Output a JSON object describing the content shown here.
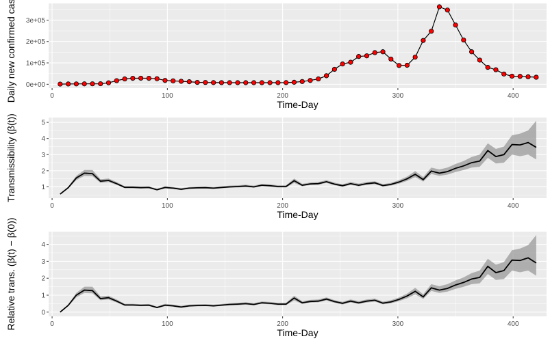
{
  "chart_data": [
    {
      "type": "line",
      "xlabel": "Time-Day",
      "ylabel": "Daily new confirmed cases",
      "xlim": [
        -3,
        429
      ],
      "ylim": [
        -18000,
        378000
      ],
      "x_ticks": [
        0,
        100,
        200,
        300,
        400
      ],
      "y_ticks": [
        0,
        100000,
        200000,
        300000
      ],
      "y_tick_labels": [
        "0e+00",
        "1e+05",
        "2e+05",
        "3e+05"
      ],
      "grid": true,
      "colors": {
        "panel": "#ebebeb",
        "grid": "#ffffff",
        "line": "#000000",
        "point": "#ff0000"
      },
      "series": [
        {
          "x": [
            7,
            14,
            21,
            28,
            35,
            42,
            49,
            56,
            63,
            70,
            77,
            84,
            91,
            98,
            105,
            112,
            119,
            126,
            133,
            140,
            147,
            154,
            161,
            168,
            175,
            182,
            189,
            196,
            203,
            210,
            217,
            224,
            231,
            238,
            245,
            252,
            259,
            266,
            273,
            280,
            287,
            294,
            301,
            308,
            315,
            322,
            329,
            336,
            343,
            350,
            357,
            364,
            371,
            378,
            385,
            392,
            399,
            406,
            413,
            420
          ],
          "y": [
            1000,
            1500,
            1800,
            2000,
            2200,
            2500,
            7000,
            17000,
            25000,
            28000,
            28500,
            28000,
            26000,
            18000,
            16000,
            14000,
            12000,
            9000,
            8500,
            8000,
            7800,
            7500,
            7500,
            7500,
            7500,
            7500,
            7500,
            7500,
            8000,
            9500,
            13000,
            18000,
            25000,
            40000,
            70000,
            95000,
            103000,
            130000,
            133000,
            148000,
            152000,
            118000,
            88000,
            89000,
            127000,
            205000,
            248000,
            362000,
            347000,
            277000,
            207000,
            152000,
            113000,
            79000,
            68000,
            48000,
            38000,
            37000,
            35000,
            33000
          ]
        }
      ]
    },
    {
      "type": "line",
      "xlabel": "Time-Day",
      "ylabel": "Transmissibility (β(t))",
      "xlim": [
        -3,
        429
      ],
      "ylim": [
        0.3,
        5.3
      ],
      "x_ticks": [
        0,
        100,
        200,
        300,
        400
      ],
      "y_ticks": [
        1,
        2,
        3,
        4,
        5
      ],
      "grid": true,
      "band": true,
      "colors": {
        "panel": "#ebebeb",
        "grid": "#ffffff",
        "line": "#000000",
        "band": "#999999"
      },
      "series": [
        {
          "x": [
            7,
            14,
            21,
            28,
            35,
            42,
            49,
            56,
            63,
            70,
            77,
            84,
            91,
            98,
            105,
            112,
            119,
            126,
            133,
            140,
            147,
            154,
            161,
            168,
            175,
            182,
            189,
            196,
            203,
            210,
            217,
            224,
            231,
            238,
            245,
            252,
            259,
            266,
            273,
            280,
            287,
            294,
            301,
            308,
            315,
            322,
            329,
            336,
            343,
            350,
            357,
            364,
            371,
            378,
            385,
            392,
            399,
            406,
            413,
            420
          ],
          "y": [
            0.55,
            0.95,
            1.55,
            1.85,
            1.82,
            1.35,
            1.4,
            1.2,
            0.97,
            0.97,
            0.95,
            0.96,
            0.82,
            0.96,
            0.92,
            0.85,
            0.92,
            0.94,
            0.95,
            0.92,
            0.96,
            1.0,
            1.02,
            1.05,
            1.0,
            1.1,
            1.07,
            1.02,
            1.02,
            1.38,
            1.1,
            1.18,
            1.2,
            1.32,
            1.17,
            1.07,
            1.2,
            1.1,
            1.2,
            1.25,
            1.08,
            1.15,
            1.3,
            1.5,
            1.78,
            1.45,
            1.98,
            1.85,
            1.95,
            2.15,
            2.3,
            2.5,
            2.6,
            3.25,
            2.88,
            3.0,
            3.62,
            3.6,
            3.75,
            3.45
          ],
          "lower": [
            0.55,
            0.9,
            1.42,
            1.68,
            1.66,
            1.25,
            1.3,
            1.12,
            0.92,
            0.92,
            0.9,
            0.91,
            0.78,
            0.9,
            0.87,
            0.8,
            0.87,
            0.89,
            0.9,
            0.87,
            0.91,
            0.95,
            0.96,
            0.99,
            0.95,
            1.04,
            1.01,
            0.96,
            0.96,
            1.24,
            1.03,
            1.11,
            1.13,
            1.24,
            1.1,
            1.0,
            1.12,
            1.03,
            1.12,
            1.17,
            1.01,
            1.07,
            1.2,
            1.37,
            1.6,
            1.33,
            1.8,
            1.68,
            1.76,
            1.92,
            2.04,
            2.2,
            2.25,
            2.8,
            2.45,
            2.5,
            3.0,
            2.9,
            3.0,
            2.7
          ],
          "upper": [
            0.55,
            1.0,
            1.68,
            2.05,
            2.05,
            1.48,
            1.52,
            1.3,
            1.04,
            1.04,
            1.02,
            1.03,
            0.88,
            1.04,
            0.99,
            0.92,
            0.99,
            1.01,
            1.02,
            0.99,
            1.03,
            1.08,
            1.1,
            1.13,
            1.08,
            1.18,
            1.15,
            1.1,
            1.1,
            1.52,
            1.19,
            1.27,
            1.3,
            1.42,
            1.26,
            1.16,
            1.3,
            1.2,
            1.3,
            1.35,
            1.17,
            1.25,
            1.42,
            1.64,
            1.98,
            1.6,
            2.2,
            2.08,
            2.2,
            2.42,
            2.6,
            2.85,
            3.0,
            3.7,
            3.35,
            3.5,
            4.2,
            4.3,
            4.5,
            5.1
          ]
        }
      ]
    },
    {
      "type": "line",
      "xlabel": "Time-Day",
      "ylabel": "Relative trans. (β(t) − β(0))",
      "xlim": [
        -3,
        429
      ],
      "ylim": [
        -0.25,
        4.75
      ],
      "x_ticks": [
        0,
        100,
        200,
        300,
        400
      ],
      "y_ticks": [
        0,
        1,
        2,
        3,
        4
      ],
      "grid": true,
      "band": true,
      "colors": {
        "panel": "#ebebeb",
        "grid": "#ffffff",
        "line": "#000000",
        "band": "#999999"
      },
      "series": [
        {
          "x": [
            7,
            14,
            21,
            28,
            35,
            42,
            49,
            56,
            63,
            70,
            77,
            84,
            91,
            98,
            105,
            112,
            119,
            126,
            133,
            140,
            147,
            154,
            161,
            168,
            175,
            182,
            189,
            196,
            203,
            210,
            217,
            224,
            231,
            238,
            245,
            252,
            259,
            266,
            273,
            280,
            287,
            294,
            301,
            308,
            315,
            322,
            329,
            336,
            343,
            350,
            357,
            364,
            371,
            378,
            385,
            392,
            399,
            406,
            413,
            420
          ],
          "y": [
            0,
            0.4,
            1.0,
            1.3,
            1.27,
            0.8,
            0.85,
            0.65,
            0.42,
            0.42,
            0.4,
            0.41,
            0.27,
            0.41,
            0.37,
            0.3,
            0.37,
            0.39,
            0.4,
            0.37,
            0.41,
            0.45,
            0.47,
            0.5,
            0.45,
            0.55,
            0.52,
            0.47,
            0.47,
            0.83,
            0.55,
            0.63,
            0.65,
            0.77,
            0.62,
            0.52,
            0.65,
            0.55,
            0.65,
            0.7,
            0.53,
            0.6,
            0.75,
            0.95,
            1.23,
            0.9,
            1.43,
            1.3,
            1.4,
            1.6,
            1.75,
            1.95,
            2.05,
            2.7,
            2.33,
            2.45,
            3.07,
            3.05,
            3.2,
            2.9
          ],
          "lower": [
            0,
            0.35,
            0.87,
            1.13,
            1.11,
            0.7,
            0.75,
            0.57,
            0.37,
            0.37,
            0.35,
            0.36,
            0.23,
            0.35,
            0.32,
            0.25,
            0.32,
            0.34,
            0.35,
            0.32,
            0.36,
            0.4,
            0.41,
            0.44,
            0.4,
            0.49,
            0.46,
            0.41,
            0.41,
            0.69,
            0.48,
            0.56,
            0.58,
            0.69,
            0.55,
            0.45,
            0.57,
            0.48,
            0.57,
            0.62,
            0.46,
            0.52,
            0.65,
            0.82,
            1.05,
            0.78,
            1.25,
            1.13,
            1.21,
            1.37,
            1.49,
            1.65,
            1.7,
            2.25,
            1.9,
            1.95,
            2.45,
            2.35,
            2.45,
            2.15
          ],
          "upper": [
            0,
            0.45,
            1.13,
            1.5,
            1.5,
            0.93,
            0.97,
            0.75,
            0.49,
            0.49,
            0.47,
            0.48,
            0.33,
            0.49,
            0.44,
            0.37,
            0.44,
            0.46,
            0.47,
            0.44,
            0.48,
            0.53,
            0.55,
            0.58,
            0.53,
            0.63,
            0.6,
            0.55,
            0.55,
            0.97,
            0.64,
            0.72,
            0.75,
            0.87,
            0.71,
            0.61,
            0.75,
            0.65,
            0.75,
            0.8,
            0.62,
            0.7,
            0.87,
            1.09,
            1.43,
            1.05,
            1.65,
            1.53,
            1.65,
            1.87,
            2.05,
            2.3,
            2.45,
            3.15,
            2.8,
            2.95,
            3.65,
            3.75,
            3.95,
            4.55
          ]
        }
      ]
    }
  ]
}
